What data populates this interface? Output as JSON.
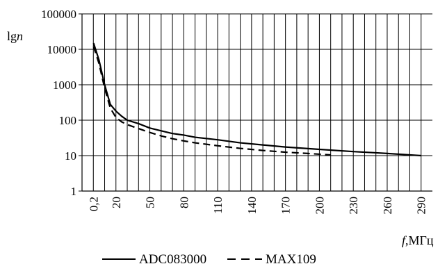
{
  "chart_data": {
    "type": "line",
    "title": "",
    "ylabel": "lgn",
    "xlabel": "f,МГц",
    "yscale": "log",
    "ylim": [
      1,
      100000
    ],
    "y_ticks": [
      "1",
      "10",
      "100",
      "1000",
      "10000",
      "100000"
    ],
    "x_ticks": [
      "0,2",
      "20",
      "50",
      "80",
      "110",
      "140",
      "170",
      "200",
      "230",
      "260",
      "290"
    ],
    "grid": true,
    "legend_position": "bottom",
    "series": [
      {
        "name": "ADC083000",
        "style": "solid",
        "color": "#000000",
        "points": [
          [
            0.2,
            15000
          ],
          [
            5,
            5000
          ],
          [
            10,
            1000
          ],
          [
            15,
            280
          ],
          [
            20,
            180
          ],
          [
            25,
            130
          ],
          [
            30,
            100
          ],
          [
            40,
            80
          ],
          [
            50,
            60
          ],
          [
            60,
            50
          ],
          [
            70,
            42
          ],
          [
            80,
            38
          ],
          [
            90,
            33
          ],
          [
            110,
            28
          ],
          [
            130,
            23
          ],
          [
            150,
            20
          ],
          [
            170,
            17.5
          ],
          [
            200,
            15
          ],
          [
            230,
            13
          ],
          [
            250,
            12
          ],
          [
            260,
            11.5
          ],
          [
            280,
            10.5
          ],
          [
            290,
            10
          ]
        ]
      },
      {
        "name": "MAX109",
        "style": "dashed",
        "color": "#000000",
        "points": [
          [
            0.2,
            12000
          ],
          [
            5,
            4000
          ],
          [
            10,
            800
          ],
          [
            15,
            220
          ],
          [
            20,
            120
          ],
          [
            25,
            90
          ],
          [
            30,
            75
          ],
          [
            40,
            58
          ],
          [
            50,
            45
          ],
          [
            60,
            36
          ],
          [
            70,
            30
          ],
          [
            80,
            26
          ],
          [
            90,
            23
          ],
          [
            110,
            19
          ],
          [
            130,
            16
          ],
          [
            150,
            14
          ],
          [
            170,
            12.5
          ],
          [
            190,
            11.5
          ],
          [
            210,
            10.5
          ]
        ]
      }
    ]
  }
}
